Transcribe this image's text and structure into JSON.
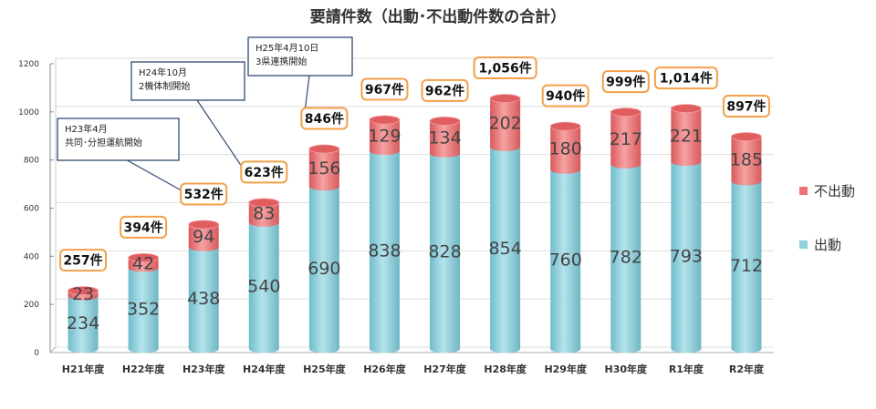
{
  "chart_data": {
    "type": "bar",
    "stacked": true,
    "title": "要請件数（出動･不出動件数の合計）",
    "categories": [
      "H21年度",
      "H22年度",
      "H23年度",
      "H24年度",
      "H25年度",
      "H26年度",
      "H27年度",
      "H28年度",
      "H29年度",
      "H30年度",
      "R1年度",
      "R2年度"
    ],
    "series": [
      {
        "name": "出動",
        "color": "#8ed0dc",
        "values": [
          234,
          352,
          438,
          540,
          690,
          838,
          828,
          854,
          760,
          782,
          793,
          712
        ]
      },
      {
        "name": "不出動",
        "color": "#ee7274",
        "values": [
          23,
          42,
          94,
          83,
          156,
          129,
          134,
          202,
          180,
          217,
          221,
          185
        ]
      }
    ],
    "totals": [
      "257件",
      "394件",
      "532件",
      "623件",
      "846件",
      "967件",
      "962件",
      "1,056件",
      "940件",
      "999件",
      "1,014件",
      "897件"
    ],
    "ylim": [
      0,
      1200
    ],
    "yticks": [
      0,
      200,
      400,
      600,
      800,
      1000,
      1200
    ],
    "legend": [
      {
        "label": "不出動",
        "color": "#ee7274"
      },
      {
        "label": "出動",
        "color": "#8ed0dc"
      }
    ],
    "legend_position": "right",
    "annotations": [
      {
        "line1": "H23年4月",
        "line2": "共同･分担運航開始",
        "target": "H23年度"
      },
      {
        "line1": "H24年10月",
        "line2": "2機体制開始",
        "target": "H24年度"
      },
      {
        "line1": "H25年4月10日",
        "line2": "3県連携開始",
        "target": "H25年度"
      }
    ]
  }
}
